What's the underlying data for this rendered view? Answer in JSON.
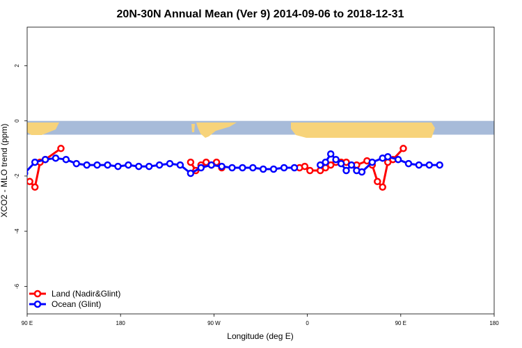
{
  "chart_data": {
    "type": "line",
    "title": "20N-30N Annual Mean (Ver 9)   2014-09-06 to 2018-12-31",
    "xlabel": "Longitude (deg E)",
    "ylabel": "XCO2 - MLO trend (ppm)",
    "xlim": [
      90,
      540
    ],
    "ylim": [
      -7,
      3.4
    ],
    "x_ticks": [
      {
        "value": 90,
        "label": "90 E"
      },
      {
        "value": 180,
        "label": "180"
      },
      {
        "value": 270,
        "label": "90 W"
      },
      {
        "value": 360,
        "label": "0"
      },
      {
        "value": 450,
        "label": "90 E"
      },
      {
        "value": 540,
        "label": "180"
      }
    ],
    "y_ticks": [
      {
        "value": 2,
        "label": "2"
      },
      {
        "value": 0,
        "label": "0"
      },
      {
        "value": -2,
        "label": "-2"
      },
      {
        "value": -4,
        "label": "-4"
      },
      {
        "value": -6,
        "label": "-6"
      }
    ],
    "map_band": {
      "ymin": -0.5,
      "ymax": 0,
      "ocean_color": "#a7bbd9",
      "land_color": "#f7d37a"
    },
    "legend_position": "bottom-left",
    "series": [
      {
        "name": "Land (Nadir&Glint)",
        "color": "#ff0000",
        "segments": [
          [
            [
              92.5,
              -2.2
            ],
            [
              97.5,
              -2.4
            ],
            [
              102.5,
              -1.5
            ],
            [
              107.5,
              -1.4
            ],
            [
              122.5,
              -1.0
            ]
          ],
          [
            [
              247.5,
              -1.5
            ],
            [
              252.5,
              -1.8
            ],
            [
              257.5,
              -1.6
            ],
            [
              262.5,
              -1.5
            ],
            [
              267.5,
              -1.6
            ],
            [
              272.5,
              -1.5
            ],
            [
              277.5,
              -1.7
            ]
          ],
          [
            [
              352.5,
              -1.7
            ],
            [
              357.5,
              -1.65
            ],
            [
              362.5,
              -1.8
            ],
            [
              372.5,
              -1.8
            ],
            [
              377.5,
              -1.7
            ],
            [
              382.5,
              -1.6
            ],
            [
              387.5,
              -1.5
            ],
            [
              392.5,
              -1.5
            ],
            [
              397.5,
              -1.5
            ],
            [
              407.5,
              -1.6
            ],
            [
              417.5,
              -1.45
            ],
            [
              422.5,
              -1.6
            ],
            [
              427.5,
              -2.2
            ],
            [
              432.5,
              -2.4
            ],
            [
              437.5,
              -1.5
            ],
            [
              442.5,
              -1.4
            ],
            [
              452.5,
              -1.0
            ]
          ]
        ]
      },
      {
        "name": "Ocean (Glint)",
        "color": "#0000ff",
        "segments": [
          [
            [
              87.5,
              -1.9
            ],
            [
              97.5,
              -1.5
            ],
            [
              107.5,
              -1.4
            ],
            [
              117.5,
              -1.35
            ],
            [
              127.5,
              -1.4
            ],
            [
              137.5,
              -1.55
            ],
            [
              147.5,
              -1.6
            ],
            [
              157.5,
              -1.6
            ],
            [
              167.5,
              -1.6
            ],
            [
              177.5,
              -1.65
            ],
            [
              187.5,
              -1.6
            ],
            [
              197.5,
              -1.65
            ],
            [
              207.5,
              -1.65
            ],
            [
              217.5,
              -1.6
            ],
            [
              227.5,
              -1.55
            ],
            [
              237.5,
              -1.6
            ],
            [
              247.5,
              -1.9
            ],
            [
              257.5,
              -1.7
            ],
            [
              267.5,
              -1.6
            ],
            [
              277.5,
              -1.65
            ],
            [
              287.5,
              -1.7
            ],
            [
              297.5,
              -1.7
            ],
            [
              307.5,
              -1.7
            ],
            [
              317.5,
              -1.75
            ],
            [
              327.5,
              -1.75
            ],
            [
              337.5,
              -1.7
            ],
            [
              347.5,
              -1.7
            ]
          ],
          [
            [
              372.5,
              -1.6
            ],
            [
              377.5,
              -1.5
            ],
            [
              382.5,
              -1.2
            ],
            [
              387.5,
              -1.4
            ],
            [
              392.5,
              -1.55
            ],
            [
              397.5,
              -1.8
            ],
            [
              402.5,
              -1.6
            ],
            [
              407.5,
              -1.8
            ],
            [
              412.5,
              -1.85
            ],
            [
              422.5,
              -1.5
            ],
            [
              432.5,
              -1.35
            ],
            [
              437.5,
              -1.3
            ],
            [
              447.5,
              -1.4
            ],
            [
              457.5,
              -1.55
            ],
            [
              467.5,
              -1.6
            ],
            [
              477.5,
              -1.6
            ],
            [
              487.5,
              -1.6
            ]
          ]
        ]
      }
    ]
  }
}
